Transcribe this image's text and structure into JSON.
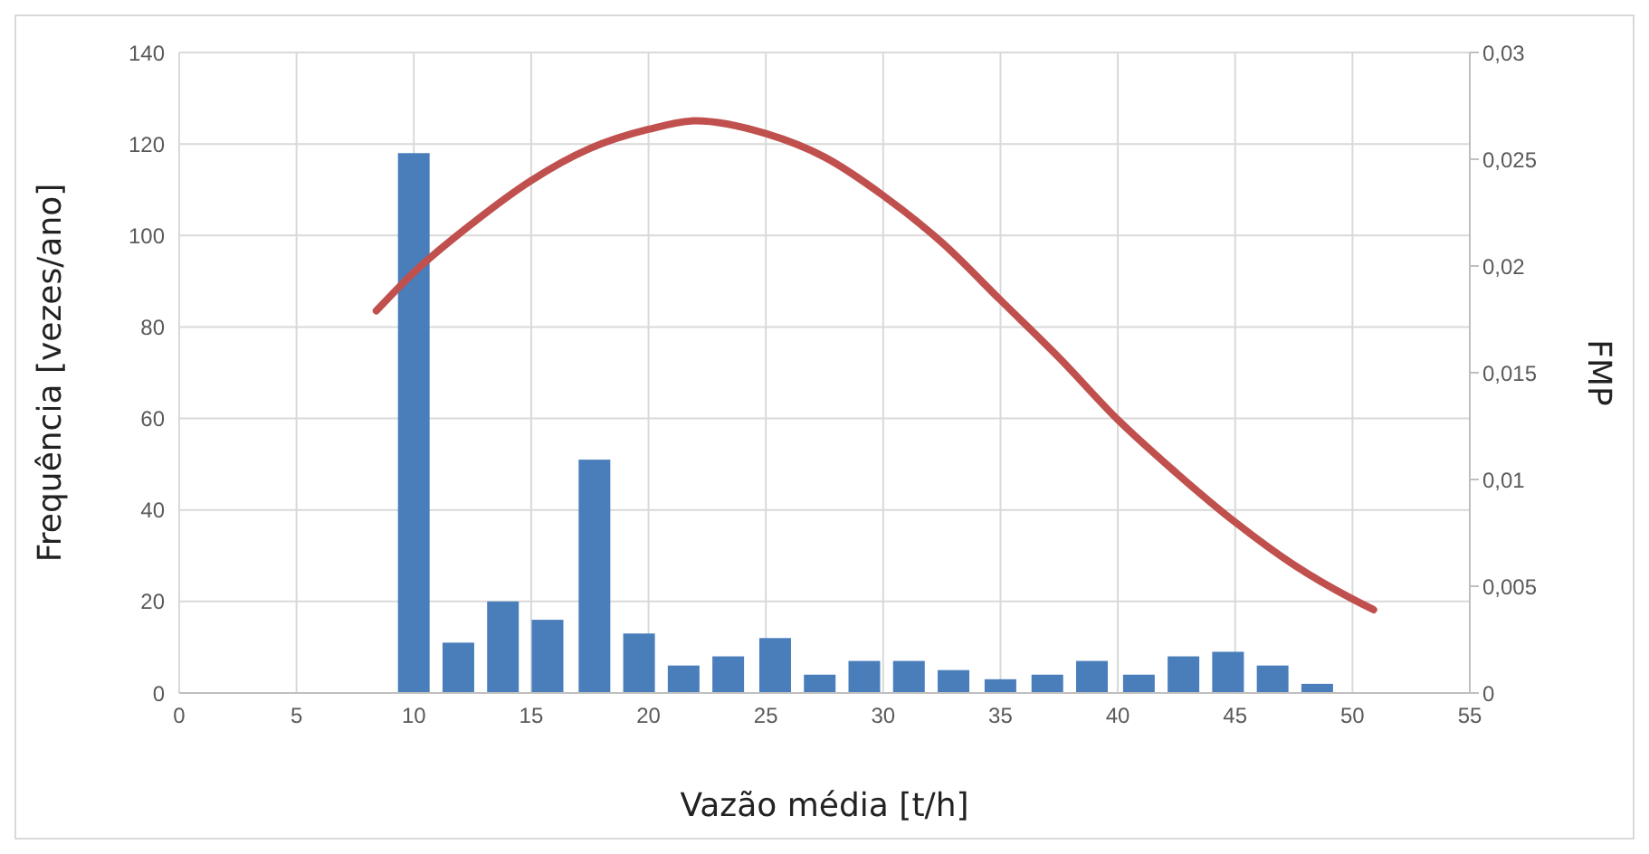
{
  "chart_data": {
    "type": "bar",
    "xlabel": "Vazão média [t/h]",
    "ylabel": "Frequência [vezes/ano]",
    "y2label": "FMP",
    "x": [
      10,
      11.9,
      13.8,
      15.7,
      17.7,
      19.6,
      21.5,
      23.4,
      25.4,
      27.3,
      29.2,
      31.1,
      33.0,
      35.0,
      37.0,
      38.9,
      40.9,
      42.8,
      44.7,
      46.6,
      48.5
    ],
    "series": [
      {
        "color": "#4a7ebb",
        "values": [
          118,
          11,
          20,
          16,
          51,
          13,
          6,
          8,
          12,
          4,
          7,
          7,
          5,
          3,
          4,
          7,
          4,
          8,
          9,
          6,
          2
        ]
      },
      {
        "type": "line",
        "axis": "y2",
        "color": "#c0504d",
        "x": [
          8.4,
          10,
          12.5,
          15,
          17.5,
          20,
          22,
          25,
          27.5,
          30,
          32.5,
          35,
          37.5,
          40,
          42.5,
          45,
          47.5,
          50,
          50.9
        ],
        "values": [
          0.0179,
          0.0197,
          0.022,
          0.024,
          0.0255,
          0.0264,
          0.0268,
          0.0262,
          0.0251,
          0.0233,
          0.0211,
          0.0184,
          0.0157,
          0.0128,
          0.0103,
          0.008,
          0.006,
          0.0044,
          0.0039
        ]
      }
    ],
    "xlim": [
      0,
      55
    ],
    "xticks": [
      0,
      5,
      10,
      15,
      20,
      25,
      30,
      35,
      40,
      45,
      50,
      55
    ],
    "ylim": [
      0,
      140
    ],
    "yticks": [
      0,
      20,
      40,
      60,
      80,
      100,
      120,
      140
    ],
    "y2lim": [
      0,
      0.03
    ],
    "y2ticks": [
      0,
      {
        "value": 0.005,
        "label": "0,005"
      },
      {
        "value": 0.01,
        "label": "0,01"
      },
      {
        "value": 0.015,
        "label": "0,015"
      },
      {
        "value": 0.02,
        "label": "0,02"
      },
      {
        "value": 0.025,
        "label": "0,025"
      },
      {
        "value": 0.03,
        "label": "0,03"
      }
    ],
    "grid": true,
    "legend": false,
    "marker": "none",
    "line_style": "solid"
  }
}
